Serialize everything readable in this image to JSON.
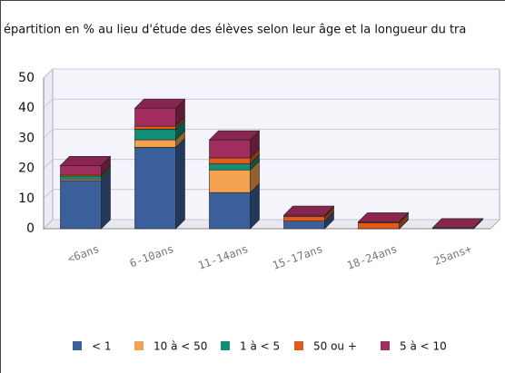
{
  "chart_data": {
    "type": "bar3d_stacked",
    "title": "épartition en % au lieu d'étude des élèves selon leur âge et la longueur du tra",
    "categories": [
      "<6ans",
      "6-10ans",
      "11-14ans",
      "15-17ans",
      "18-24ans",
      "25ans+"
    ],
    "series": [
      {
        "name": "< 1",
        "color": "#3a5f9a",
        "values": [
          16,
          27,
          12,
          2.5,
          0,
          0.3
        ]
      },
      {
        "name": "10 à < 50",
        "color": "#f4a24f",
        "values": [
          0.5,
          2.5,
          7.5,
          0,
          0,
          0
        ]
      },
      {
        "name": "1 à < 5",
        "color": "#0f8f78",
        "values": [
          1,
          3.5,
          2,
          0,
          0,
          0
        ]
      },
      {
        "name": "50 ou +",
        "color": "#e05a1a",
        "values": [
          0.5,
          1,
          2,
          1.5,
          2,
          0
        ]
      },
      {
        "name": "5 à < 10",
        "color": "#a02d5e",
        "values": [
          3,
          6,
          6,
          0.5,
          0.3,
          0
        ]
      }
    ],
    "ylim": [
      0,
      50
    ],
    "yticks": [
      0,
      10,
      20,
      30,
      40,
      50
    ],
    "grid": true,
    "legend": "bottom"
  }
}
